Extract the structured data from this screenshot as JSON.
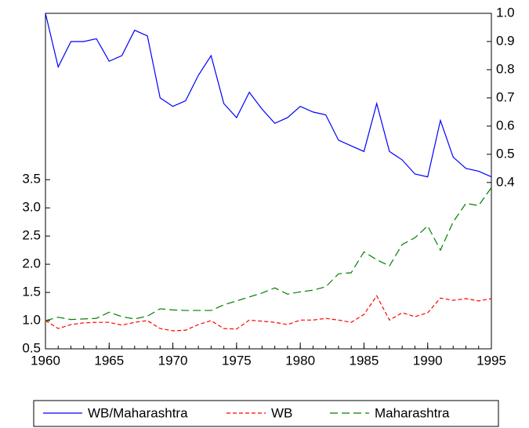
{
  "chart_data": {
    "type": "line",
    "x": [
      1960,
      1961,
      1962,
      1963,
      1964,
      1965,
      1966,
      1967,
      1968,
      1969,
      1970,
      1971,
      1972,
      1973,
      1974,
      1975,
      1976,
      1977,
      1978,
      1979,
      1980,
      1981,
      1982,
      1983,
      1984,
      1985,
      1986,
      1987,
      1988,
      1989,
      1990,
      1991,
      1992,
      1993,
      1994,
      1995
    ],
    "xlim": [
      1960,
      1995
    ],
    "xticks": [
      1960,
      1965,
      1970,
      1975,
      1980,
      1985,
      1990,
      1995
    ],
    "ylim": [
      0.5,
      6.45
    ],
    "yticks": [
      0.5,
      {
        "value": 1.0,
        "label": "1.0"
      },
      1.5,
      {
        "value": 2.0,
        "label": "2.0"
      },
      2.5,
      {
        "value": 3.0,
        "label": "3.0"
      },
      3.5
    ],
    "y2lim": [
      -0.19,
      1.0
    ],
    "y2ticks": [
      0.4,
      0.5,
      0.6,
      0.7,
      0.8,
      0.9,
      {
        "value": 1.0,
        "label": "1.0"
      }
    ],
    "legend": "bottom",
    "series": [
      {
        "name": "WB/Maharashtra",
        "color": "#0000ff",
        "line_style": "solid",
        "axis": "y2",
        "values": [
          1.0,
          0.81,
          0.9,
          0.9,
          0.91,
          0.83,
          0.85,
          0.94,
          0.92,
          0.7,
          0.67,
          0.69,
          0.78,
          0.85,
          0.68,
          0.63,
          0.72,
          0.66,
          0.61,
          0.63,
          0.67,
          0.65,
          0.64,
          0.55,
          0.53,
          0.51,
          0.68,
          0.51,
          0.48,
          0.43,
          0.42,
          0.62,
          0.49,
          0.45,
          0.44,
          0.42
        ]
      },
      {
        "name": "WB",
        "color": "#ff0000",
        "line_style": "dashed",
        "values": [
          1.0,
          0.86,
          0.93,
          0.96,
          0.97,
          0.97,
          0.92,
          0.97,
          1.0,
          0.86,
          0.82,
          0.83,
          0.93,
          1.0,
          0.86,
          0.85,
          1.01,
          0.99,
          0.97,
          0.93,
          1.01,
          1.01,
          1.04,
          1.01,
          0.97,
          1.11,
          1.44,
          1.01,
          1.14,
          1.07,
          1.14,
          1.4,
          1.36,
          1.39,
          1.35,
          1.39
        ]
      },
      {
        "name": "Maharashtra",
        "color": "#008000",
        "line_style": "long-dashed",
        "values": [
          1.0,
          1.06,
          1.02,
          1.03,
          1.04,
          1.15,
          1.07,
          1.03,
          1.08,
          1.21,
          1.19,
          1.18,
          1.18,
          1.18,
          1.28,
          1.35,
          1.42,
          1.49,
          1.58,
          1.47,
          1.51,
          1.54,
          1.6,
          1.83,
          1.85,
          2.22,
          2.08,
          1.97,
          2.35,
          2.47,
          2.68,
          2.25,
          2.75,
          3.08,
          3.04,
          3.36
        ]
      }
    ]
  }
}
